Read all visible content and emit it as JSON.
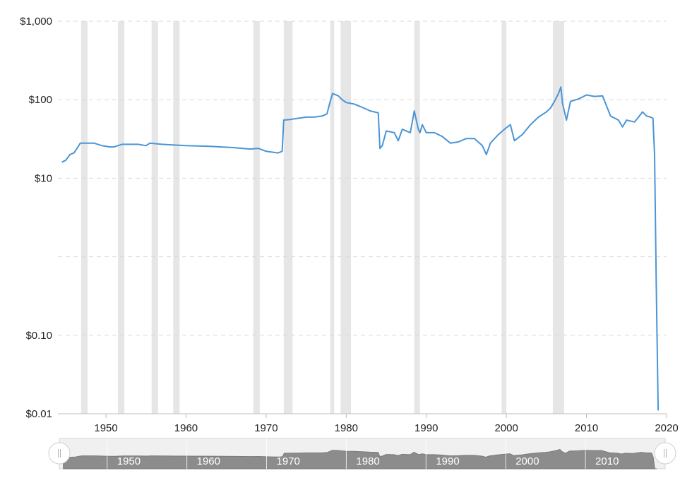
{
  "chart_data": {
    "type": "line",
    "title": "",
    "xlabel": "",
    "ylabel": "",
    "y_scale": "log",
    "ylim": [
      0.01,
      1000
    ],
    "xlim": [
      1944,
      2020
    ],
    "y_ticks": [
      {
        "value": 1000,
        "label": "$1,000"
      },
      {
        "value": 100,
        "label": "$100"
      },
      {
        "value": 10,
        "label": "$10"
      },
      {
        "value": 1,
        "label": ""
      },
      {
        "value": 0.1,
        "label": "$0.10"
      },
      {
        "value": 0.01,
        "label": "$0.01"
      }
    ],
    "x_ticks": [
      "1950",
      "1960",
      "1970",
      "1980",
      "1990",
      "2000",
      "2010",
      "2020"
    ],
    "grid": "horizontal dashed",
    "line_color": "#4a95d6",
    "recession_color": "#e6e6e6",
    "recessions": [
      [
        1946.9,
        1947.7
      ],
      [
        1951.5,
        1952.3
      ],
      [
        1955.7,
        1956.5
      ],
      [
        1958.4,
        1959.2
      ],
      [
        1968.4,
        1969.2
      ],
      [
        1972.2,
        1973.3
      ],
      [
        1978.0,
        1978.5
      ],
      [
        1979.3,
        1980.6
      ],
      [
        1988.5,
        1989.2
      ],
      [
        1999.4,
        2000.0
      ],
      [
        2005.8,
        2007.2
      ]
    ],
    "series": [
      {
        "x": [
          1944.5,
          1945.0,
          1945.5,
          1946.0,
          1946.5,
          1946.8,
          1947.5,
          1948.5,
          1949.5,
          1950.5,
          1951.0,
          1952.0,
          1954.0,
          1955.0,
          1955.5,
          1957.0,
          1960.0,
          1963.0,
          1966.0,
          1968.0,
          1969.0,
          1970.0,
          1971.5,
          1972.0,
          1972.2,
          1973.0,
          1974.0,
          1975.0,
          1976.0,
          1977.0,
          1977.6,
          1978.0,
          1978.3,
          1979.0,
          1979.5,
          1980.0,
          1981.0,
          1982.0,
          1983.0,
          1984.0,
          1984.2,
          1984.5,
          1985.0,
          1986.0,
          1986.5,
          1987.0,
          1988.0,
          1988.5,
          1989.0,
          1989.2,
          1989.5,
          1990.0,
          1991.0,
          1992.0,
          1993.0,
          1994.0,
          1995.0,
          1996.0,
          1997.0,
          1997.5,
          1998.0,
          1999.0,
          2000.0,
          2000.5,
          2001.0,
          2002.0,
          2003.0,
          2004.0,
          2005.0,
          2005.5,
          2006.0,
          2006.5,
          2006.8,
          2007.0,
          2007.5,
          2008.0,
          2009.0,
          2010.0,
          2011.0,
          2012.0,
          2013.0,
          2014.0,
          2014.5,
          2015.0,
          2016.0,
          2016.5,
          2017.0,
          2017.5,
          2018.0,
          2018.3,
          2018.5,
          2018.7,
          2018.85,
          2018.95
        ],
        "y": [
          16,
          17,
          20,
          21,
          25,
          28,
          28,
          28,
          26,
          25,
          25,
          27,
          27,
          26,
          28,
          27,
          26,
          25.5,
          24.5,
          23.5,
          24,
          22,
          21,
          22,
          55,
          56,
          58,
          60,
          60,
          62,
          66,
          95,
          120,
          112,
          100,
          92,
          88,
          80,
          72,
          68,
          24,
          26,
          40,
          38,
          30,
          42,
          38,
          72,
          42,
          38,
          48,
          38,
          38,
          34,
          28,
          29,
          32,
          32,
          26,
          20,
          28,
          36,
          44,
          48,
          30,
          36,
          48,
          60,
          70,
          78,
          95,
          120,
          145,
          90,
          55,
          95,
          102,
          115,
          110,
          112,
          62,
          55,
          45,
          55,
          52,
          60,
          70,
          62,
          60,
          58,
          20,
          0.5,
          0.05,
          0.011
        ]
      }
    ]
  },
  "navigator": {
    "labels": [
      "1950",
      "1960",
      "1970",
      "1980",
      "1990",
      "2000",
      "2010"
    ],
    "handle_left_icon": "grip-icon",
    "handle_right_icon": "grip-icon"
  }
}
